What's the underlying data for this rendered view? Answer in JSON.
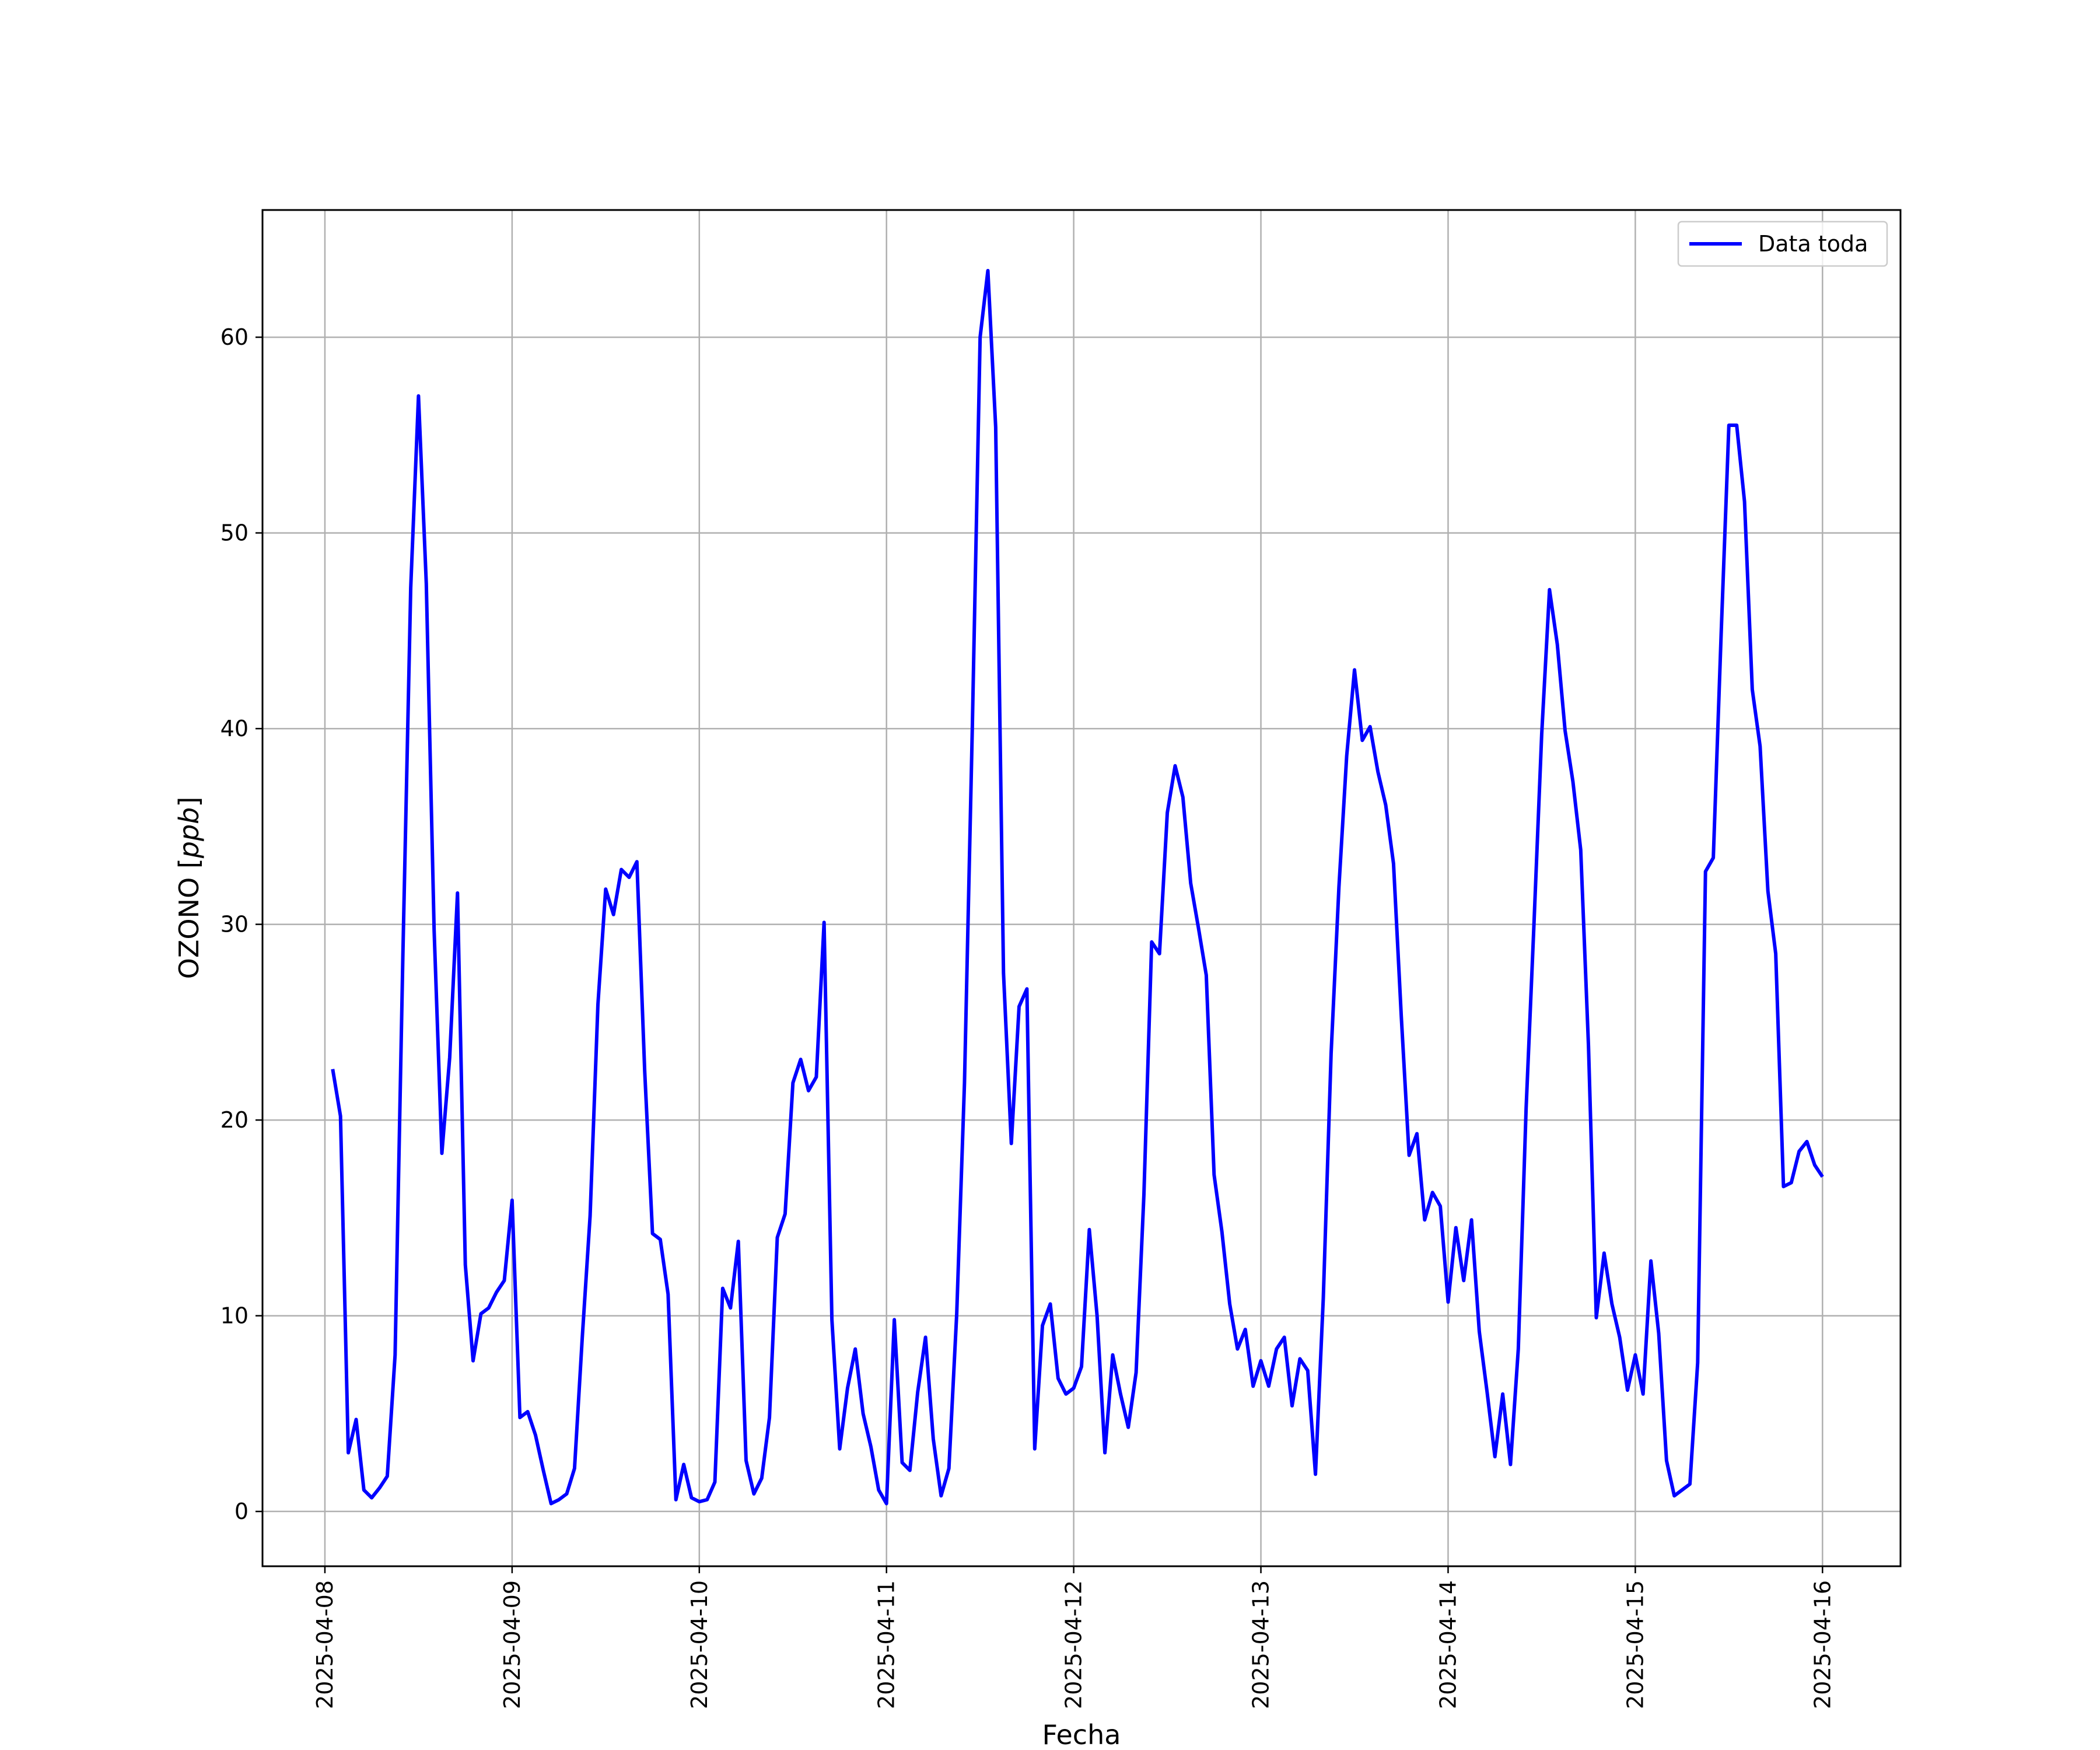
{
  "chart_data": {
    "type": "line",
    "xlabel": "Fecha",
    "ylabel_prefix": "OZONO [",
    "ylabel_unit": "ppb",
    "ylabel_suffix": "]",
    "x_tick_labels": [
      "2025-04-08",
      "2025-04-09",
      "2025-04-10",
      "2025-04-11",
      "2025-04-12",
      "2025-04-13",
      "2025-04-14",
      "2025-04-15",
      "2025-04-16"
    ],
    "y_ticks": [
      0,
      10,
      20,
      30,
      40,
      50,
      60
    ],
    "xlim": [
      "2025-04-07T16:00",
      "2025-04-16T10:00"
    ],
    "ylim": [
      -2.8,
      66.5
    ],
    "grid": true,
    "legend_position": "top-right",
    "series": [
      {
        "name": "Data toda",
        "color": "#0000ff",
        "x_start": "2025-04-08T01:00",
        "step": "1h",
        "values": [
          22.6,
          20.2,
          3.0,
          4.7,
          1.1,
          0.7,
          1.2,
          1.8,
          8.0,
          28.5,
          47.2,
          57.0,
          47.4,
          29.7,
          18.3,
          23.2,
          31.6,
          12.6,
          7.7,
          10.1,
          10.4,
          11.2,
          11.8,
          15.9,
          4.8,
          5.1,
          3.9,
          2.1,
          0.4,
          0.6,
          0.9,
          2.2,
          8.9,
          15.1,
          25.9,
          31.8,
          30.5,
          32.8,
          32.4,
          33.2,
          22.5,
          14.2,
          13.9,
          11.1,
          0.6,
          2.4,
          0.7,
          0.5,
          0.6,
          1.5,
          11.4,
          10.4,
          13.8,
          2.6,
          0.9,
          1.7,
          4.8,
          14.0,
          15.2,
          21.9,
          23.1,
          21.5,
          22.2,
          30.1,
          9.8,
          3.2,
          6.3,
          8.3,
          5.0,
          3.3,
          1.1,
          0.4,
          9.8,
          2.5,
          2.1,
          6.1,
          8.9,
          3.7,
          0.8,
          2.2,
          10.1,
          21.9,
          40.0,
          60.0,
          63.4,
          55.4,
          27.5,
          18.8,
          25.8,
          26.7,
          3.2,
          9.5,
          10.6,
          6.8,
          6.0,
          6.3,
          7.4,
          14.4,
          10.0,
          3.0,
          8.0,
          6.0,
          4.3,
          7.1,
          16.2,
          29.1,
          28.5,
          35.7,
          38.1,
          36.5,
          32.1,
          29.8,
          27.4,
          17.2,
          14.3,
          10.6,
          8.3,
          9.3,
          6.4,
          7.7,
          6.4,
          8.3,
          8.9,
          5.4,
          7.8,
          7.2,
          1.9,
          10.9,
          23.4,
          31.9,
          38.6,
          43.0,
          39.4,
          40.1,
          37.8,
          36.1,
          33.1,
          25.3,
          18.2,
          19.3,
          14.9,
          16.3,
          15.6,
          10.7,
          14.5,
          11.8,
          14.9,
          9.2,
          6.1,
          2.8,
          6.0,
          2.4,
          8.3,
          20.6,
          29.9,
          39.7,
          47.1,
          44.3,
          39.9,
          37.3,
          33.8,
          23.8,
          9.9,
          13.2,
          10.6,
          8.9,
          6.2,
          8.0,
          6.0,
          12.8,
          9.1,
          2.6,
          0.8,
          1.1,
          1.4,
          7.6,
          32.7,
          33.4,
          44.8,
          55.5,
          55.5,
          51.6,
          42.0,
          39.1,
          31.7,
          28.5,
          16.6,
          16.8,
          18.4,
          18.9,
          17.7,
          17.1
        ]
      }
    ]
  }
}
